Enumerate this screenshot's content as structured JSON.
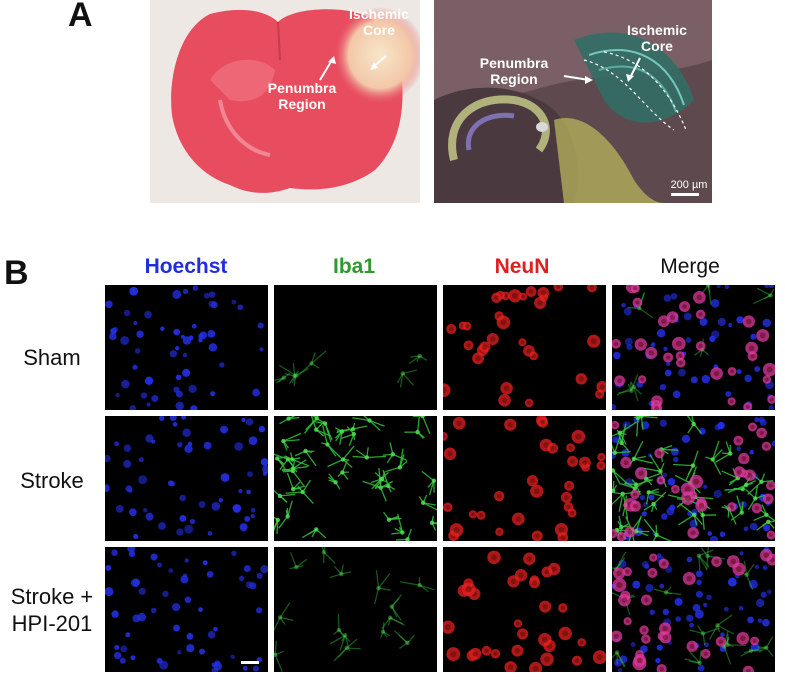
{
  "panel_a": {
    "letter": "A",
    "ttc": {
      "core_label": "Ischemic\nCore",
      "penumbra_label": "Penumbra\nRegion"
    },
    "fluor": {
      "core_label": "Ischemic\nCore",
      "penumbra_label": "Penumbra\nRegion",
      "scale_bar": "200 µm"
    }
  },
  "panel_b": {
    "letter": "B",
    "columns": [
      {
        "label": "Hoechst",
        "color": "#1f2fe0"
      },
      {
        "label": "Iba1",
        "color": "#2e9a2e"
      },
      {
        "label": "NeuN",
        "color": "#e02020"
      },
      {
        "label": "Merge",
        "color": "#111111"
      }
    ],
    "rows": [
      {
        "label": "Sham"
      },
      {
        "label": "Stroke"
      },
      {
        "label": "Stroke +\nHPI-201"
      }
    ]
  }
}
